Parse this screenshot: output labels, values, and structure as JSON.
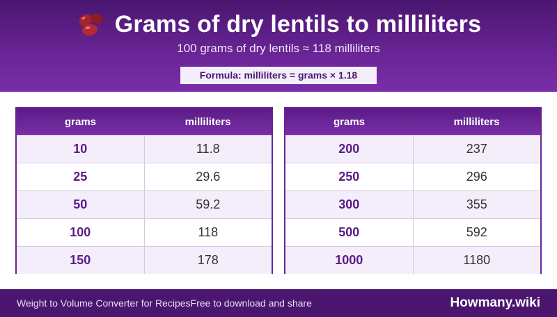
{
  "header": {
    "icon": "beans-icon",
    "title": "Grams of dry lentils to milliliters",
    "subtitle": "100 grams of dry lentils ≈ 118 milliliters",
    "formula": "Formula: milliliters = grams × 1.18"
  },
  "tables": [
    {
      "headers": {
        "grams": "grams",
        "milliliters": "milliliters"
      },
      "rows": [
        {
          "grams": "10",
          "milliliters": "11.8"
        },
        {
          "grams": "25",
          "milliliters": "29.6"
        },
        {
          "grams": "50",
          "milliliters": "59.2"
        },
        {
          "grams": "100",
          "milliliters": "118"
        },
        {
          "grams": "150",
          "milliliters": "178"
        }
      ]
    },
    {
      "headers": {
        "grams": "grams",
        "milliliters": "milliliters"
      },
      "rows": [
        {
          "grams": "200",
          "milliliters": "237"
        },
        {
          "grams": "250",
          "milliliters": "296"
        },
        {
          "grams": "300",
          "milliliters": "355"
        },
        {
          "grams": "500",
          "milliliters": "592"
        },
        {
          "grams": "1000",
          "milliliters": "1180"
        }
      ]
    }
  ],
  "footer": {
    "left_text": "Weight to Volume Converter for RecipesFree to download and share",
    "brand": "Howmany.wiki"
  },
  "colors": {
    "primary": "#4a1670",
    "accent": "#7a2ea8",
    "row_alt": "#f4eefa"
  }
}
